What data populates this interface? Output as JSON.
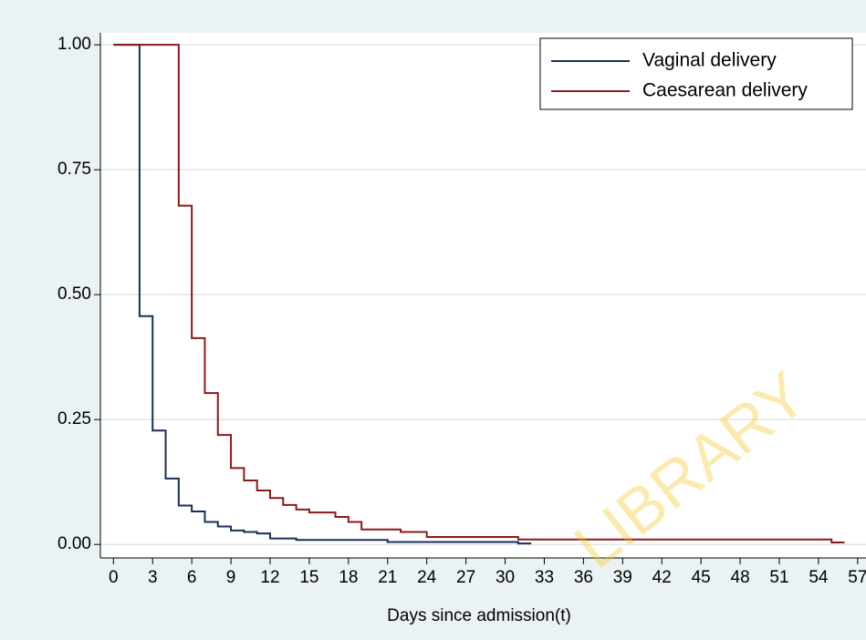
{
  "chart_data": {
    "type": "line",
    "step": "post",
    "xlabel": "Days since admission(t)",
    "watermark": "LIBRARY",
    "xlim": [
      -1,
      57.5
    ],
    "ylim": [
      -0.027,
      1.024
    ],
    "xticks": [
      0,
      3,
      6,
      9,
      12,
      15,
      18,
      21,
      24,
      27,
      30,
      33,
      36,
      39,
      42,
      45,
      48,
      51,
      54,
      57
    ],
    "yticks": [
      {
        "value": 0,
        "label": "0.00"
      },
      {
        "value": 0.25,
        "label": "0.25"
      },
      {
        "value": 0.5,
        "label": "0.50"
      },
      {
        "value": 0.75,
        "label": "0.75"
      },
      {
        "value": 1,
        "label": "1.00"
      }
    ],
    "grid": true,
    "legend": "top-right",
    "series": [
      {
        "name": "Vaginal delivery",
        "color": "#1a2e5a",
        "x": [
          0,
          2,
          3,
          4,
          5,
          6,
          7,
          8,
          9,
          10,
          11,
          12,
          14,
          21,
          31,
          32
        ],
        "values": [
          1,
          0.457,
          0.228,
          0.132,
          0.078,
          0.066,
          0.045,
          0.036,
          0.028,
          0.025,
          0.022,
          0.012,
          0.009,
          0.005,
          0.002,
          0.002
        ]
      },
      {
        "name": "Caesarean delivery",
        "color": "#8b1a1a",
        "x": [
          0,
          5,
          6,
          7,
          8,
          9,
          10,
          11,
          12,
          13,
          14,
          15,
          17,
          18,
          19,
          22,
          24,
          31,
          55,
          56
        ],
        "values": [
          1,
          0.678,
          0.413,
          0.303,
          0.219,
          0.153,
          0.128,
          0.108,
          0.093,
          0.079,
          0.07,
          0.064,
          0.055,
          0.045,
          0.03,
          0.025,
          0.015,
          0.01,
          0.004,
          0.004
        ]
      }
    ]
  }
}
